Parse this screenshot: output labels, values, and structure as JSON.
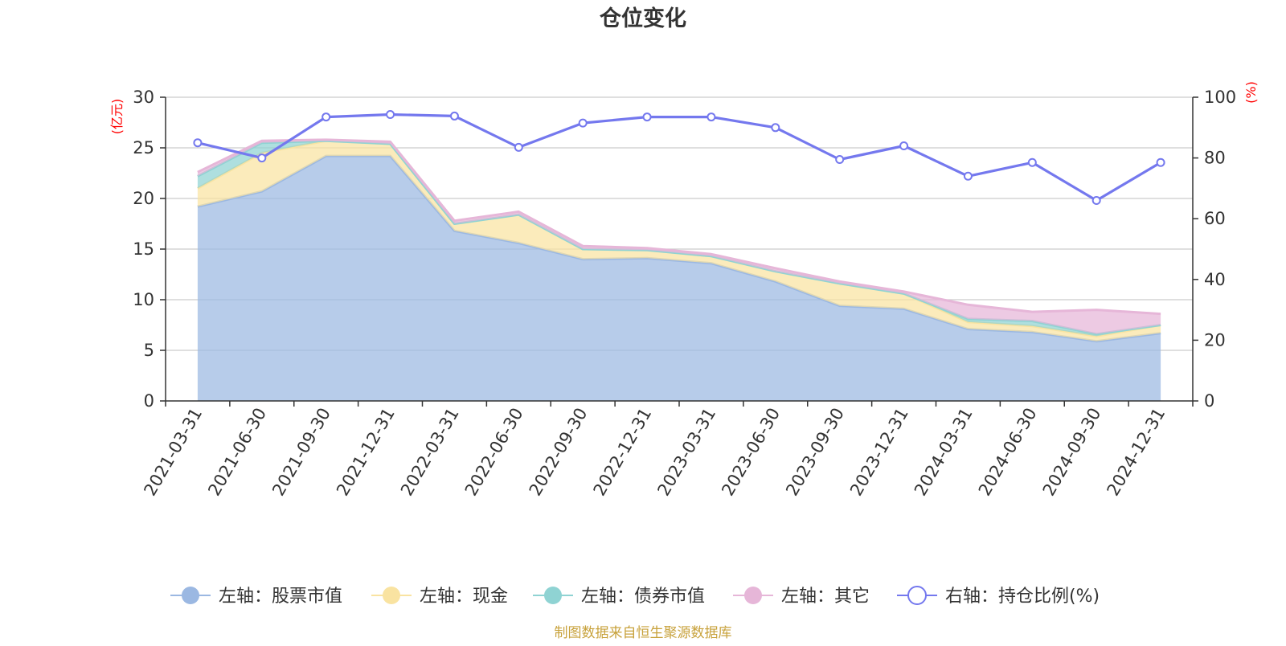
{
  "chart_data": {
    "type": "area",
    "title": "仓位变化",
    "categories": [
      "2021-03-31",
      "2021-06-30",
      "2021-09-30",
      "2021-12-31",
      "2022-03-31",
      "2022-06-30",
      "2022-09-30",
      "2022-12-31",
      "2023-03-31",
      "2023-06-30",
      "2023-09-30",
      "2023-12-31",
      "2024-03-31",
      "2024-06-30",
      "2024-09-30",
      "2024-12-31"
    ],
    "left_axis": {
      "unit": "(亿元)",
      "ylim": [
        0,
        30
      ],
      "ticks": [
        "0",
        "5",
        "10",
        "15",
        "20",
        "25",
        "30"
      ]
    },
    "right_axis": {
      "unit": "(%)",
      "ylim": [
        0,
        100
      ],
      "ticks": [
        "0",
        "20",
        "40",
        "60",
        "80",
        "100"
      ]
    },
    "series": [
      {
        "name": "左轴：股票市值",
        "axis": "left",
        "kind": "stacked-area",
        "color": "#9bb8e2",
        "values": [
          19.2,
          20.7,
          24.2,
          24.2,
          16.8,
          15.6,
          14.0,
          14.1,
          13.6,
          11.8,
          9.4,
          9.1,
          7.1,
          6.8,
          5.9,
          6.7
        ]
      },
      {
        "name": "左轴：现金",
        "axis": "left",
        "kind": "stacked-area",
        "color": "#f9e3a1",
        "values": [
          1.8,
          3.8,
          1.5,
          1.2,
          0.7,
          2.8,
          1.0,
          0.8,
          0.7,
          1.0,
          2.2,
          1.5,
          0.7,
          0.6,
          0.5,
          0.8
        ]
      },
      {
        "name": "左轴：债券市值",
        "axis": "left",
        "kind": "stacked-area",
        "color": "#8fd3d3",
        "values": [
          1.2,
          1.0,
          0.0,
          0.0,
          0.0,
          0.0,
          0.0,
          0.0,
          0.0,
          0.0,
          0.0,
          0.0,
          0.3,
          0.5,
          0.2,
          0.0
        ]
      },
      {
        "name": "左轴：其它",
        "axis": "left",
        "kind": "stacked-area",
        "color": "#e6b6d8",
        "values": [
          0.4,
          0.2,
          0.1,
          0.2,
          0.3,
          0.3,
          0.3,
          0.2,
          0.2,
          0.3,
          0.2,
          0.2,
          1.4,
          0.9,
          2.4,
          1.1
        ]
      },
      {
        "name": "右轴：持仓比例(%)",
        "axis": "right",
        "kind": "line",
        "color": "#7478ee",
        "values": [
          85.0,
          80.0,
          93.5,
          94.3,
          93.8,
          83.5,
          91.5,
          93.5,
          93.5,
          90.0,
          79.5,
          84.0,
          74.0,
          78.5,
          66.0,
          78.5
        ]
      }
    ]
  },
  "legend": [
    {
      "label": "左轴：股票市值",
      "color": "#9bb8e2",
      "marker": "filled-circle"
    },
    {
      "label": "左轴：现金",
      "color": "#f9e3a1",
      "marker": "filled-circle"
    },
    {
      "label": "左轴：债券市值",
      "color": "#8fd3d3",
      "marker": "filled-circle"
    },
    {
      "label": "左轴：其它",
      "color": "#e6b6d8",
      "marker": "filled-circle"
    },
    {
      "label": "右轴：持仓比例(%)",
      "color": "#7478ee",
      "marker": "hollow-circle"
    }
  ],
  "source_note": "制图数据来自恒生聚源数据库",
  "colors": {
    "axis_unit": "#ff0000",
    "source_note": "#c8a23c",
    "grid": "#cccccc",
    "axis": "#333333"
  }
}
